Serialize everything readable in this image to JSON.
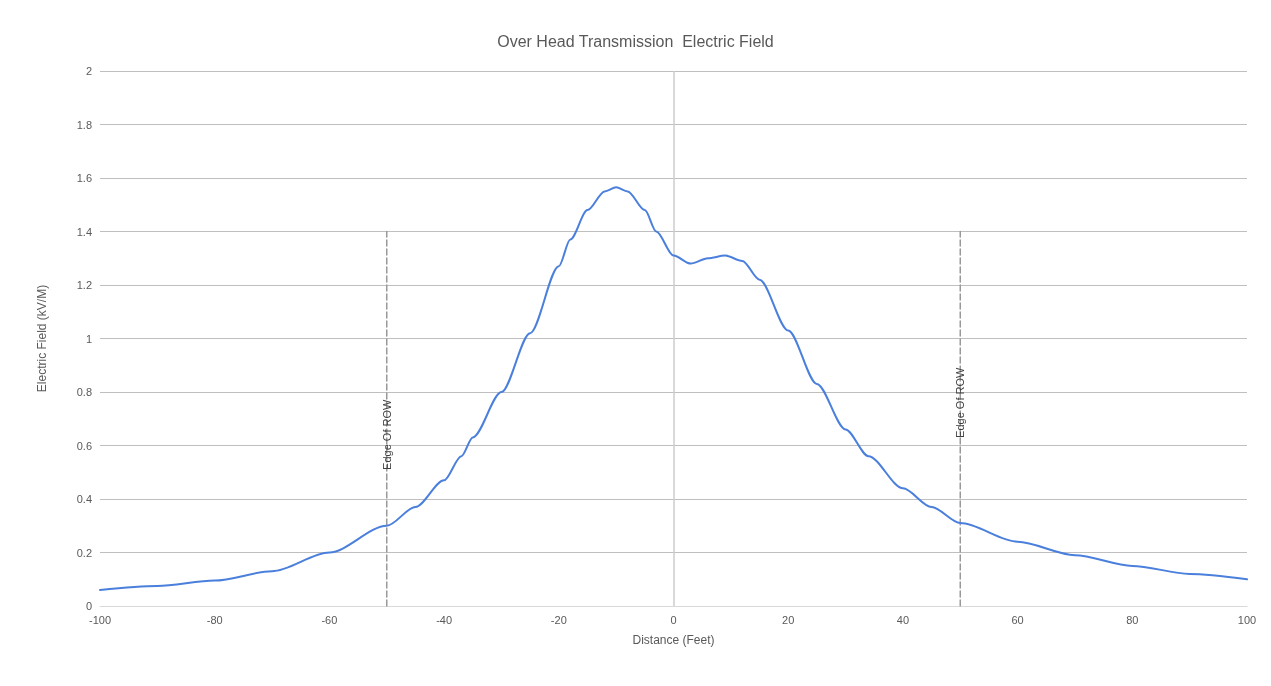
{
  "chart_data": {
    "type": "line",
    "title": "Over Head Transmission  Electric Field",
    "xlabel": "Distance (Feet)",
    "ylabel": "Electric Field (kV/M)",
    "xlim": [
      -100,
      100
    ],
    "xticks": [
      -100,
      -80,
      -60,
      -40,
      -20,
      0,
      20,
      40,
      60,
      80,
      100
    ],
    "ylim": [
      0,
      2
    ],
    "yticks": [
      0,
      0.2,
      0.4,
      0.6,
      0.8,
      1,
      1.2,
      1.4,
      1.6,
      1.8,
      2
    ],
    "grid": "y",
    "marker": "none",
    "series": [
      {
        "color": "#4a7fdc",
        "x": [
          -100,
          -90,
          -80,
          -70,
          -60,
          -50,
          -45,
          -40,
          -37,
          -35,
          -30,
          -25,
          -20,
          -18,
          -15,
          -12,
          -10,
          -8,
          -5,
          -3,
          0,
          3,
          6,
          9,
          12,
          15,
          20,
          25,
          30,
          34,
          40,
          45,
          50,
          60,
          70,
          80,
          90,
          100
        ],
        "values": [
          0.06,
          0.075,
          0.095,
          0.13,
          0.2,
          0.3,
          0.37,
          0.47,
          0.56,
          0.63,
          0.8,
          1.02,
          1.27,
          1.37,
          1.48,
          1.55,
          1.565,
          1.55,
          1.48,
          1.4,
          1.31,
          1.28,
          1.3,
          1.31,
          1.29,
          1.22,
          1.03,
          0.83,
          0.66,
          0.56,
          0.44,
          0.37,
          0.31,
          0.24,
          0.19,
          0.15,
          0.12,
          0.1
        ]
      },
      {
        "type": "line",
        "color": "#999999",
        "line_style": "dashed",
        "x": [
          -50,
          -50
        ],
        "values": [
          0,
          1.4
        ]
      },
      {
        "type": "line",
        "color": "#999999",
        "line_style": "dashed",
        "x": [
          50,
          50
        ],
        "values": [
          0,
          1.4
        ]
      }
    ],
    "ref_lines": [
      {
        "axis": "x",
        "value": 0,
        "color": "#cccccc"
      }
    ],
    "annotations": [
      {
        "text": "Edge Of ROW",
        "x": -50,
        "y": 0.7
      },
      {
        "text": "Edge Of ROW",
        "x": 50,
        "y": 0.7
      }
    ]
  }
}
